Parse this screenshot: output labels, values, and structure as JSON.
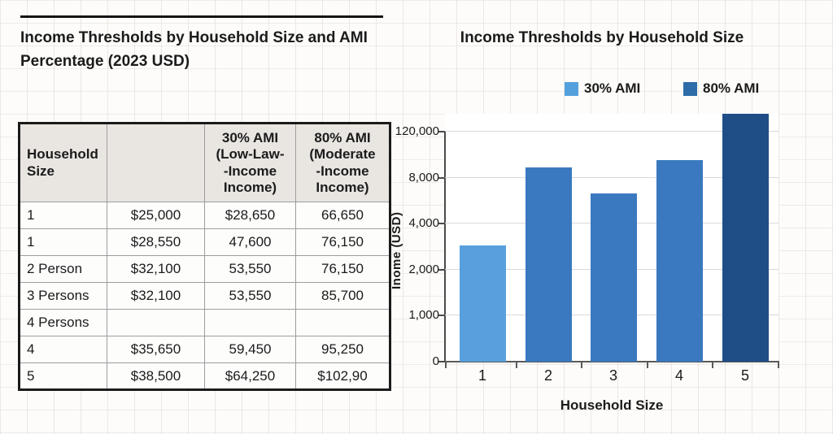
{
  "left_panel": {
    "title": "Income Thresholds by Household Size and AMI\n Percentage (2023 USD)"
  },
  "table": {
    "header": [
      "Household\nSize",
      "",
      "30% AMI\n(Low-Law-\n-Income\nIncome)",
      "80% AMI\n(Moderate\n-Income\nIncome)"
    ],
    "rows": [
      [
        "1",
        "$25,000",
        "$28,650",
        "66,650"
      ],
      [
        "1",
        "$28,550",
        "47,600",
        "76,150"
      ],
      [
        "2 Person",
        "$32,100",
        "53,550",
        "76,150"
      ],
      [
        "3 Persons",
        "$32,100",
        "53,550",
        "85,700"
      ],
      [
        "4 Persons",
        "",
        "",
        ""
      ],
      [
        "4",
        "$35,650",
        "59,450",
        "95,250"
      ],
      [
        "5",
        "$38,500",
        "$64,250",
        "$102,90"
      ]
    ]
  },
  "chart_data": {
    "type": "bar",
    "title": "Income Thresholds by Household Size",
    "xlabel": "Household Size",
    "ylabel": "Inome (USD)",
    "categories": [
      "1",
      "2",
      "3",
      "4",
      "5"
    ],
    "y_tick_labels": [
      "0",
      "1,000",
      "2,000",
      "4,000",
      "8,000",
      "120,000"
    ],
    "values_grid_units": [
      2.53,
      4.22,
      3.66,
      4.39,
      5.39
    ],
    "bar_colors": [
      "#58a0dd",
      "#3a79c0",
      "#3a79c0",
      "#3a79c0",
      "#1f4e87"
    ],
    "legend": [
      {
        "label": "30% AMI",
        "color": "#54a0dc"
      },
      {
        "label": "80% AMI",
        "color": "#2d6ca8"
      }
    ],
    "grid": true,
    "legend_position": "top"
  }
}
